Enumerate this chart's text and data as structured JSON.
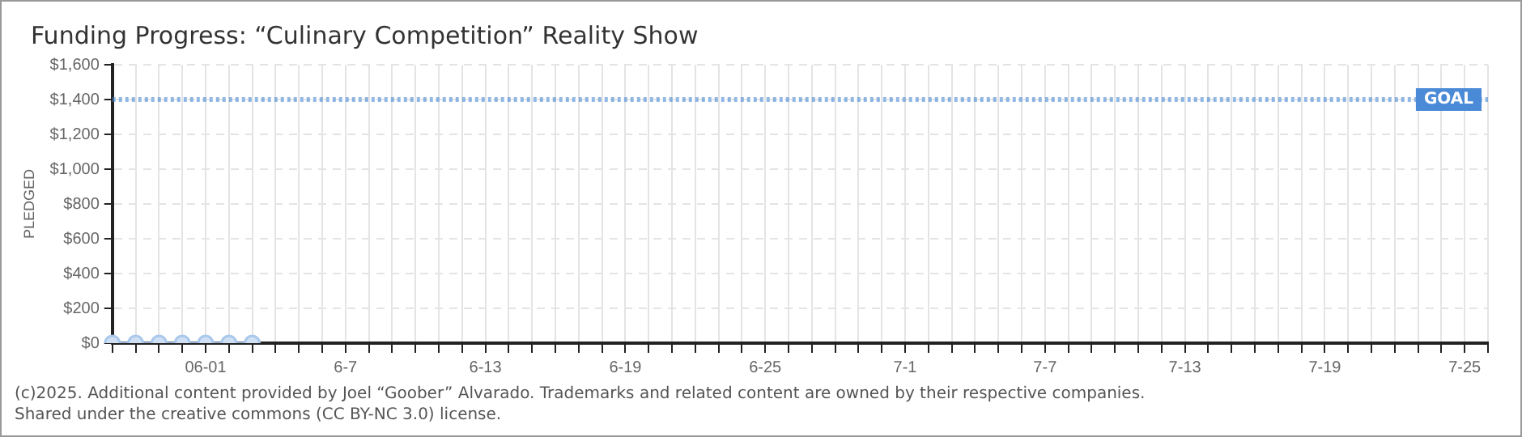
{
  "chart_data": {
    "type": "line",
    "title": "Funding Progress: “Culinary Competition” Reality Show",
    "ylabel": "PLEDGED",
    "categories": [
      null,
      null,
      null,
      null,
      "06-01",
      null,
      null,
      null,
      null,
      null,
      "6-7",
      null,
      null,
      null,
      null,
      null,
      "6-13",
      null,
      null,
      null,
      null,
      null,
      "6-19",
      null,
      null,
      null,
      null,
      null,
      "6-25",
      null,
      null,
      null,
      null,
      null,
      "7-1",
      null,
      null,
      null,
      null,
      null,
      "7-7",
      null,
      null,
      null,
      null,
      null,
      "7-13",
      null,
      null,
      null,
      null,
      null,
      "7-19",
      null,
      null,
      null,
      null,
      null,
      "7-25",
      null
    ],
    "series": [
      {
        "color": "#a9c8ec",
        "values": [
          0,
          0,
          0,
          0,
          0,
          0,
          0,
          null,
          null,
          null,
          null,
          null,
          null,
          null,
          null,
          null,
          null,
          null,
          null,
          null,
          null,
          null,
          null,
          null,
          null,
          null,
          null,
          null,
          null,
          null,
          null,
          null,
          null,
          null,
          null,
          null,
          null,
          null,
          null,
          null,
          null,
          null,
          null,
          null,
          null,
          null,
          null,
          null,
          null,
          null,
          null,
          null,
          null,
          null,
          null,
          null,
          null,
          null,
          null,
          null
        ]
      }
    ],
    "ylim": [
      0,
      1600
    ],
    "yticks": [
      {
        "value": 0,
        "label": "$0"
      },
      {
        "value": 200,
        "label": "$200"
      },
      {
        "value": 400,
        "label": "$400"
      },
      {
        "value": 600,
        "label": "$600"
      },
      {
        "value": 800,
        "label": "$800"
      },
      {
        "value": 1000,
        "label": "$1,000"
      },
      {
        "value": 1200,
        "label": "$1,200"
      },
      {
        "value": 1400,
        "label": "$1,400"
      },
      {
        "value": 1600,
        "label": "$1,600"
      }
    ],
    "ref_lines": [
      {
        "axis": "y",
        "value": 1400,
        "label": "GOAL",
        "color": "#4a8ad6",
        "line_style": "dotted"
      }
    ],
    "grid": true,
    "legend": false,
    "marker": "circle",
    "line_style": "solid",
    "annotations": [
      "(c)2025. Additional content provided by Joel “Goober” Alvarado. Trademarks and related content are owned by their respective companies.",
      "Shared under the creative commons (CC BY-NC 3.0) license."
    ]
  }
}
